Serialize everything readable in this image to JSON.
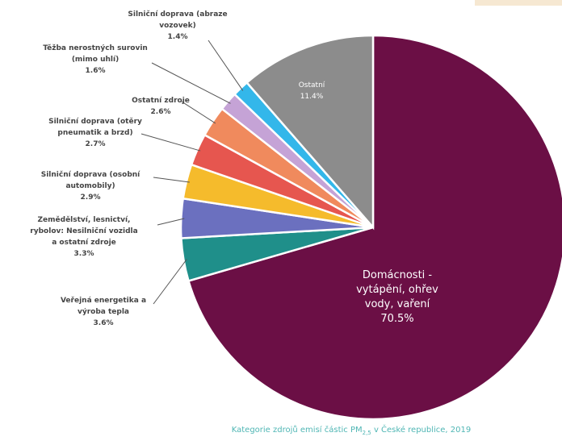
{
  "chart_data": {
    "type": "pie",
    "title": "",
    "caption": {
      "text_before": "Kategorie zdrojů emisí částic PM",
      "subscript": "2,5",
      "text_after": " v České republice, 2019"
    },
    "start_angle_deg": 0,
    "direction": "clockwise",
    "slices": [
      {
        "label": [
          "Domácnosti -",
          "vytápění, ohřev",
          "vody, vaření"
        ],
        "value": 70.5,
        "value_label": "70.5%",
        "color": "#6b0f45"
      },
      {
        "label": [
          "Veřejná energetika a",
          "výroba tepla"
        ],
        "value": 3.6,
        "value_label": "3.6%",
        "color": "#1f8f8a"
      },
      {
        "label": [
          "Zemědělství, lesnictví,",
          "rybolov: Nesilniční vozidla",
          "a ostatní zdroje"
        ],
        "value": 3.3,
        "value_label": "3.3%",
        "color": "#6b70bf"
      },
      {
        "label": [
          "Silniční doprava (osobní",
          "automobily)"
        ],
        "value": 2.9,
        "value_label": "2.9%",
        "color": "#f5bb2c"
      },
      {
        "label": [
          "Silniční doprava (otěry",
          "pneumatik a brzd)"
        ],
        "value": 2.7,
        "value_label": "2.7%",
        "color": "#e6564f"
      },
      {
        "label": [
          "Ostatní zdroje"
        ],
        "value": 2.6,
        "value_label": "2.6%",
        "color": "#f08a5d"
      },
      {
        "label": [
          "Těžba nerostných surovin",
          "(mimo uhlí)"
        ],
        "value": 1.6,
        "value_label": "1.6%",
        "color": "#c5a3d6"
      },
      {
        "label": [
          "Silniční doprava (abraze",
          "vozovek)"
        ],
        "value": 1.4,
        "value_label": "1.4%",
        "color": "#33b7ea"
      },
      {
        "label": [
          "Ostatní"
        ],
        "value": 11.4,
        "value_label": "11.4%",
        "color": "#8c8c8c"
      }
    ]
  }
}
